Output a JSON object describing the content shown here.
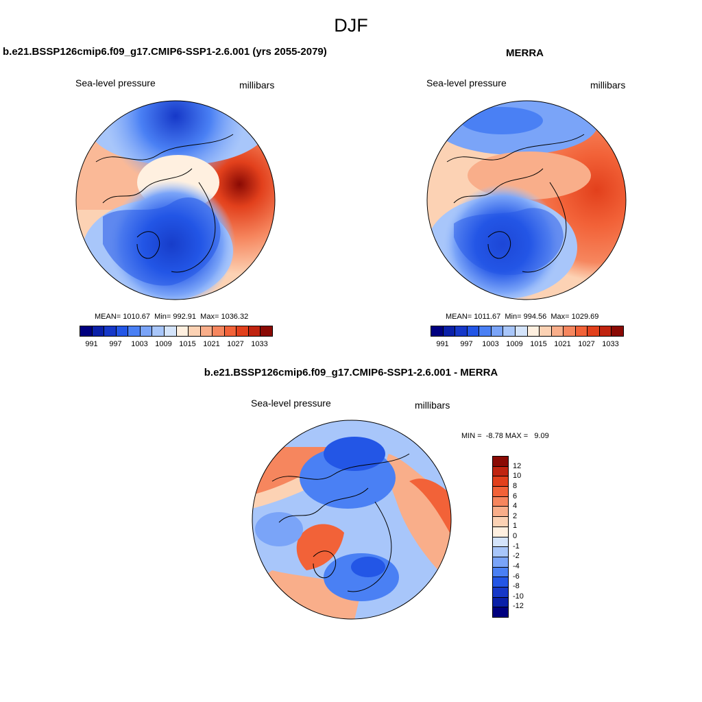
{
  "figure": {
    "title": "DJF"
  },
  "panels": [
    {
      "title": "b.e21.BSSP126cmip6.f09_g17.CMIP6-SSP1-2.6.001 (yrs 2055-2079)",
      "left_label": "Sea-level pressure",
      "right_label": "millibars",
      "stats": {
        "mean_label": "MEAN=",
        "mean": "1010.67",
        "min_label": "Min=",
        "min": "992.91",
        "max_label": "Max=",
        "max": "1036.32"
      }
    },
    {
      "title": "MERRA",
      "left_label": "Sea-level pressure",
      "right_label": "millibars",
      "stats": {
        "mean_label": "MEAN=",
        "mean": "1011.67",
        "min_label": "Min=",
        "min": "994.56",
        "max_label": "Max=",
        "max": "1029.69"
      }
    },
    {
      "title": "b.e21.BSSP126cmip6.f09_g17.CMIP6-SSP1-2.6.001 - MERRA",
      "left_label": "Sea-level pressure",
      "right_label": "millibars",
      "stats_text": "MIN =  -8.78 MAX =   9.09"
    }
  ],
  "abs_colorbar": {
    "colors": [
      "#00007f",
      "#0a20a8",
      "#1638c8",
      "#2356e6",
      "#4a80f4",
      "#7aa4f8",
      "#a8c6fa",
      "#d4e4fb",
      "#fff0e0",
      "#fcd2b4",
      "#f9ae8a",
      "#f6865e",
      "#f26238",
      "#e2401c",
      "#c02410",
      "#8a0a04"
    ],
    "labels": [
      "991",
      "997",
      "1003",
      "1009",
      "1015",
      "1021",
      "1027",
      "1033"
    ]
  },
  "diff_colorbar": {
    "colors": [
      "#8a0a04",
      "#c02410",
      "#e2401c",
      "#f26238",
      "#f6865e",
      "#f9ae8a",
      "#fcd2b4",
      "#fff0e0",
      "#d4e4fb",
      "#a8c6fa",
      "#7aa4f8",
      "#4a80f4",
      "#2356e6",
      "#1638c8",
      "#0a20a8",
      "#00007f"
    ],
    "labels": [
      "12",
      "10",
      "8",
      "6",
      "4",
      "2",
      "1",
      "0",
      "-1",
      "-2",
      "-4",
      "-6",
      "-8",
      "-10",
      "-12"
    ]
  },
  "palette": {
    "coast": "#000000",
    "border": "#000000"
  }
}
